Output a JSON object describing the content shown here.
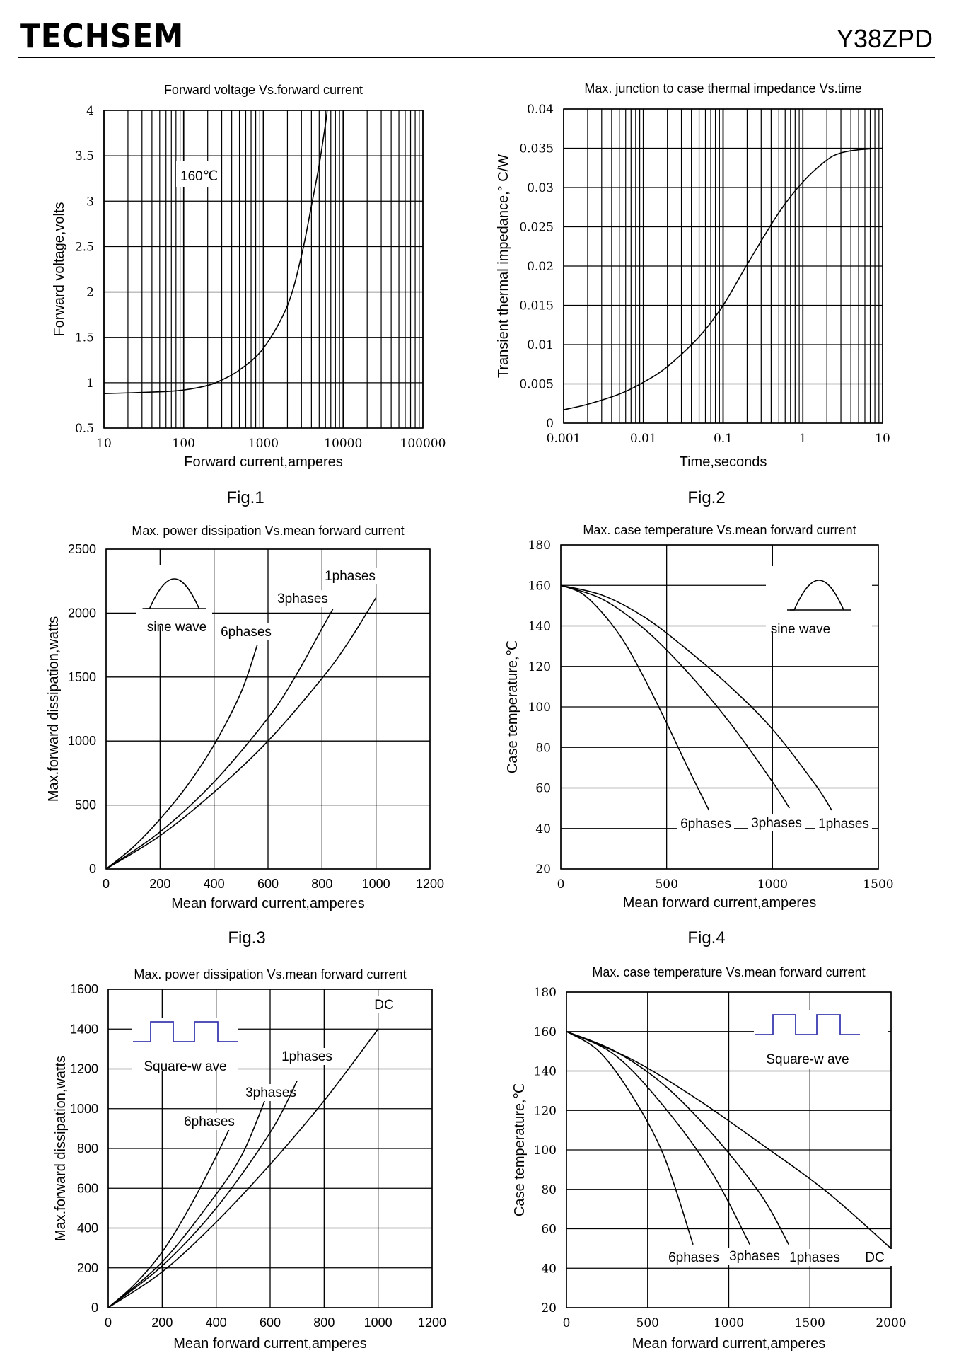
{
  "header": {
    "brand": "TECHSEM",
    "model": "Y38ZPD"
  },
  "figures": [
    {
      "label": "Fig.1"
    },
    {
      "label": "Fig.2"
    },
    {
      "label": "Fig.3"
    },
    {
      "label": "Fig.4"
    },
    {
      "label": "Fig.5"
    },
    {
      "label": "Fig.6"
    }
  ],
  "chart_data": [
    {
      "type": "line",
      "title": "Forward  voltage  Vs.forward  current",
      "xlabel": "Forward  current,amperes",
      "ylabel": "Forward  voltage,volts",
      "xscale": "log",
      "xlim": [
        10,
        100000
      ],
      "ylim": [
        0.5,
        4
      ],
      "xticks": [
        10,
        100,
        1000,
        10000,
        100000
      ],
      "xtick_labels": [
        "10",
        "100",
        "1000",
        "10000",
        "100000"
      ],
      "yticks": [
        0.5,
        1,
        1.5,
        2,
        2.5,
        3,
        3.5,
        4
      ],
      "ytick_labels": [
        "0.5",
        "1",
        "1.5",
        "2",
        "2.5",
        "3",
        "3.5",
        "4"
      ],
      "grid": true,
      "annotations": [
        "160℃"
      ],
      "series": [
        {
          "x": [
            10,
            50,
            100,
            200,
            300,
            500,
            1000,
            2000,
            3000,
            4000,
            5000,
            6000,
            6300
          ],
          "y": [
            0.88,
            0.9,
            0.92,
            0.97,
            1.03,
            1.14,
            1.38,
            1.85,
            2.4,
            2.95,
            3.4,
            3.85,
            4.0
          ]
        }
      ]
    },
    {
      "type": "line",
      "title": "Max. junction  to  case  thermal  impedance  Vs.time",
      "xlabel": "Time,seconds",
      "ylabel": "Transient  thermal  impedance,° C/W",
      "xscale": "log",
      "xlim": [
        0.001,
        10
      ],
      "ylim": [
        0,
        0.04
      ],
      "xticks": [
        0.001,
        0.01,
        0.1,
        1,
        10
      ],
      "xtick_labels": [
        "0.001",
        "0.01",
        "0.1",
        "1",
        "10"
      ],
      "yticks": [
        0,
        0.005,
        0.01,
        0.015,
        0.02,
        0.025,
        0.03,
        0.035,
        0.04
      ],
      "ytick_labels": [
        "0",
        "0.005",
        "0.01",
        "0.015",
        "0.02",
        "0.025",
        "0.03",
        "0.035",
        "0.04"
      ],
      "grid": true,
      "series": [
        {
          "x": [
            0.001,
            0.002,
            0.005,
            0.01,
            0.02,
            0.05,
            0.1,
            0.2,
            0.5,
            1,
            2,
            3,
            5,
            10
          ],
          "y": [
            0.0017,
            0.0024,
            0.0037,
            0.0052,
            0.0072,
            0.011,
            0.015,
            0.0202,
            0.0268,
            0.0307,
            0.0335,
            0.0344,
            0.0348,
            0.035
          ]
        }
      ]
    },
    {
      "type": "line",
      "title": "Max. power  dissipation  Vs.mean  forward  current",
      "xlabel": "Mean  forward  current,amperes",
      "ylabel": "Max.forward  dissipation,watts",
      "xlim": [
        0,
        1200
      ],
      "ylim": [
        0,
        2500
      ],
      "xticks": [
        0,
        200,
        400,
        600,
        800,
        1000,
        1200
      ],
      "xtick_labels": [
        "0",
        "200",
        "400",
        "600",
        "800",
        "1000",
        "1200"
      ],
      "yticks": [
        0,
        500,
        1000,
        1500,
        2000,
        2500
      ],
      "ytick_labels": [
        "0",
        "500",
        "1000",
        "1500",
        "2000",
        "2500"
      ],
      "grid": true,
      "inset_label": "sine wave",
      "series": [
        {
          "name": "6phases",
          "x": [
            0,
            100,
            200,
            300,
            400,
            500,
            560
          ],
          "y": [
            0,
            170,
            390,
            650,
            970,
            1380,
            1750
          ]
        },
        {
          "name": "3phases",
          "x": [
            0,
            200,
            400,
            600,
            700,
            800,
            840
          ],
          "y": [
            0,
            290,
            680,
            1180,
            1500,
            1880,
            2030
          ]
        },
        {
          "name": "1phases",
          "x": [
            0,
            200,
            400,
            600,
            800,
            900,
            1000
          ],
          "y": [
            0,
            260,
            600,
            1000,
            1490,
            1780,
            2120
          ]
        }
      ]
    },
    {
      "type": "line",
      "title": "Max. case  temperature  Vs.mean  forward  current",
      "xlabel": "Mean  forward  current,amperes",
      "ylabel": "Case  temperature,℃",
      "xlim": [
        0,
        1500
      ],
      "ylim": [
        20,
        180
      ],
      "xticks": [
        0,
        500,
        1000,
        1500
      ],
      "xtick_labels": [
        "0",
        "500",
        "1000",
        "1500"
      ],
      "yticks": [
        20,
        40,
        60,
        80,
        100,
        120,
        140,
        160,
        180
      ],
      "ytick_labels": [
        "20",
        "40",
        "60",
        "80",
        "100",
        "120",
        "140",
        "160",
        "180"
      ],
      "grid": true,
      "inset_label": "sine wave",
      "series": [
        {
          "name": "6phases",
          "x": [
            0,
            100,
            200,
            300,
            400,
            500,
            600,
            700
          ],
          "y": [
            160,
            156,
            146,
            132,
            113,
            92,
            70,
            49
          ]
        },
        {
          "name": "3phases",
          "x": [
            0,
            200,
            400,
            600,
            800,
            1000,
            1080
          ],
          "y": [
            160,
            153,
            138,
            117,
            92,
            63,
            50
          ]
        },
        {
          "name": "1phases",
          "x": [
            0,
            200,
            400,
            600,
            800,
            1000,
            1200,
            1280
          ],
          "y": [
            160,
            155,
            144,
            128,
            110,
            89,
            62,
            49
          ]
        }
      ]
    },
    {
      "type": "line",
      "title": "Max. power  dissipation  Vs.mean  forward  current",
      "xlabel": "Mean  forward  current,amperes",
      "ylabel": "Max.forward  dissipation,watts",
      "xlim": [
        0,
        1200
      ],
      "ylim": [
        0,
        1600
      ],
      "xticks": [
        0,
        200,
        400,
        600,
        800,
        1000,
        1200
      ],
      "xtick_labels": [
        "0",
        "200",
        "400",
        "600",
        "800",
        "1000",
        "1200"
      ],
      "yticks": [
        0,
        200,
        400,
        600,
        800,
        1000,
        1200,
        1400,
        1600
      ],
      "ytick_labels": [
        "0",
        "200",
        "400",
        "600",
        "800",
        "1000",
        "1200",
        "1400",
        "1600"
      ],
      "grid": true,
      "inset_label": "Square-w ave",
      "series": [
        {
          "name": "6phases",
          "x": [
            0,
            100,
            200,
            300,
            400,
            470
          ],
          "y": [
            0,
            120,
            280,
            500,
            760,
            960
          ]
        },
        {
          "name": "3phases",
          "x": [
            0,
            200,
            400,
            500,
            580
          ],
          "y": [
            0,
            230,
            570,
            780,
            1040
          ]
        },
        {
          "name": "1phases",
          "x": [
            0,
            200,
            400,
            600,
            700
          ],
          "y": [
            0,
            210,
            500,
            880,
            1140
          ]
        },
        {
          "name": "DC",
          "x": [
            0,
            200,
            400,
            600,
            800,
            1000
          ],
          "y": [
            0,
            180,
            430,
            720,
            1040,
            1400
          ]
        }
      ]
    },
    {
      "type": "line",
      "title": "Max. case  temperature  Vs.mean  forward  current",
      "xlabel": "Mean  forward  current,amperes",
      "ylabel": "Case  temperature,℃",
      "xlim": [
        0,
        2000
      ],
      "ylim": [
        20,
        180
      ],
      "xticks": [
        0,
        500,
        1000,
        1500,
        2000
      ],
      "xtick_labels": [
        "0",
        "500",
        "1000",
        "1500",
        "2000"
      ],
      "yticks": [
        20,
        40,
        60,
        80,
        100,
        120,
        140,
        160,
        180
      ],
      "ytick_labels": [
        "20",
        "40",
        "60",
        "80",
        "100",
        "120",
        "140",
        "160",
        "180"
      ],
      "grid": true,
      "inset_label": "Square-w ave",
      "series": [
        {
          "name": "6phases",
          "x": [
            0,
            200,
            400,
            600,
            780
          ],
          "y": [
            160,
            150,
            128,
            97,
            52
          ]
        },
        {
          "name": "3phases",
          "x": [
            0,
            300,
            600,
            900,
            1130
          ],
          "y": [
            160,
            148,
            122,
            88,
            52
          ]
        },
        {
          "name": "1phases",
          "x": [
            0,
            300,
            600,
            900,
            1200,
            1370
          ],
          "y": [
            160,
            150,
            133,
            108,
            77,
            52
          ]
        },
        {
          "name": "DC",
          "x": [
            0,
            400,
            800,
            1200,
            1600,
            2000
          ],
          "y": [
            160,
            146,
            126,
            103,
            79,
            50
          ]
        }
      ]
    }
  ]
}
